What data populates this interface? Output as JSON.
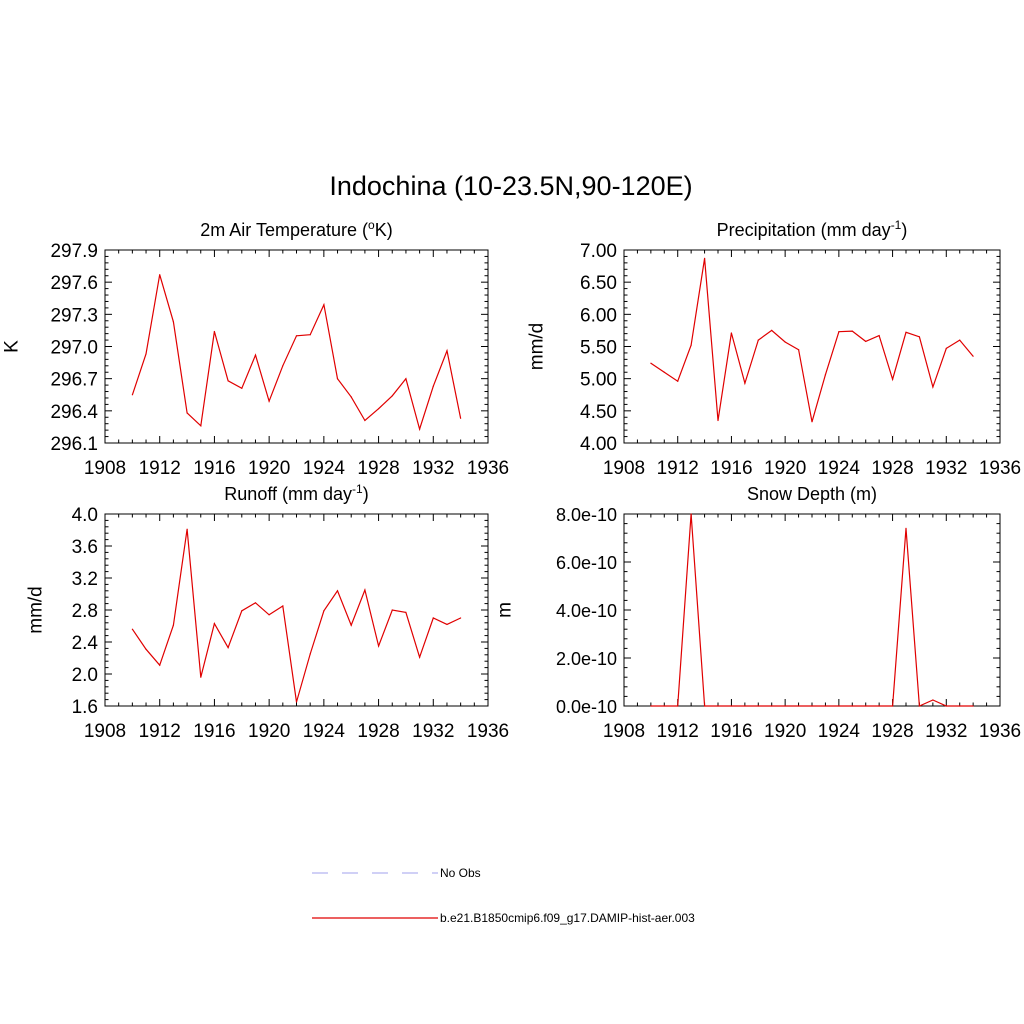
{
  "title": "Indochina (10-23.5N,90-120E)",
  "legend": {
    "placement": "bottom-center",
    "entries": [
      {
        "label": "No Obs",
        "style": "dashed",
        "color": "#b4b4f0"
      },
      {
        "label": "b.e21.B1850cmip6.f09_g17.DAMIP-hist-aer.003",
        "style": "solid",
        "color": "#e00000"
      }
    ]
  },
  "chart_data": [
    {
      "type": "line",
      "title": "2m Air Temperature (oK)",
      "title_parts": {
        "pre": "2m Air Temperature (",
        "sup": "o",
        "post": "K)"
      },
      "ylabel": "K",
      "xlim": [
        1908,
        1936
      ],
      "x_ticks": [
        1908,
        1912,
        1916,
        1920,
        1924,
        1928,
        1932,
        1936
      ],
      "ylim": [
        296.1,
        297.9
      ],
      "y_ticks": [
        296.1,
        296.4,
        296.7,
        297.0,
        297.3,
        297.6,
        297.9
      ],
      "y_tick_labels": [
        "296.1",
        "296.4",
        "296.7",
        "297.0",
        "297.3",
        "297.6",
        "297.9"
      ],
      "grid": false,
      "series": [
        {
          "color": "#e00000",
          "x": [
            1910,
            1911,
            1912,
            1913,
            1914,
            1915,
            1916,
            1917,
            1918,
            1919,
            1920,
            1921,
            1922,
            1923,
            1924,
            1925,
            1926,
            1927,
            1928,
            1929,
            1930,
            1931,
            1932,
            1933,
            1934
          ],
          "y": [
            296.55,
            296.93,
            297.67,
            297.23,
            296.38,
            296.26,
            297.14,
            296.68,
            296.61,
            296.92,
            296.49,
            296.82,
            297.1,
            297.11,
            297.39,
            296.7,
            296.53,
            296.31,
            296.42,
            296.54,
            296.7,
            296.23,
            296.63,
            296.96,
            296.33
          ]
        }
      ]
    },
    {
      "type": "line",
      "title": "Precipitation (mm day-1)",
      "title_parts": {
        "pre": "Precipitation (mm day",
        "sup": "-1",
        "post": ")"
      },
      "ylabel": "mm/d",
      "xlim": [
        1908,
        1936
      ],
      "x_ticks": [
        1908,
        1912,
        1916,
        1920,
        1924,
        1928,
        1932,
        1936
      ],
      "ylim": [
        4.0,
        7.0
      ],
      "y_ticks": [
        4.0,
        4.5,
        5.0,
        5.5,
        6.0,
        6.5,
        7.0
      ],
      "y_tick_labels": [
        "4.00",
        "4.50",
        "5.00",
        "5.50",
        "6.00",
        "6.50",
        "7.00"
      ],
      "grid": false,
      "series": [
        {
          "color": "#e00000",
          "x": [
            1910,
            1911,
            1912,
            1913,
            1914,
            1915,
            1916,
            1917,
            1918,
            1919,
            1920,
            1921,
            1922,
            1923,
            1924,
            1925,
            1926,
            1927,
            1928,
            1929,
            1930,
            1931,
            1932,
            1933,
            1934
          ],
          "y": [
            5.24,
            5.1,
            4.96,
            5.52,
            6.87,
            4.35,
            5.71,
            4.93,
            5.6,
            5.75,
            5.57,
            5.45,
            4.33,
            5.06,
            5.73,
            5.74,
            5.58,
            5.67,
            4.99,
            5.72,
            5.65,
            4.87,
            5.47,
            5.6,
            5.35
          ]
        }
      ]
    },
    {
      "type": "line",
      "title": "Runoff (mm day-1)",
      "title_parts": {
        "pre": "Runoff (mm day",
        "sup": "-1",
        "post": ")"
      },
      "ylabel": "mm/d",
      "xlim": [
        1908,
        1936
      ],
      "x_ticks": [
        1908,
        1912,
        1916,
        1920,
        1924,
        1928,
        1932,
        1936
      ],
      "ylim": [
        1.6,
        4.0
      ],
      "y_ticks": [
        1.6,
        2.0,
        2.4,
        2.8,
        3.2,
        3.6,
        4.0
      ],
      "y_tick_labels": [
        "1.6",
        "2.0",
        "2.4",
        "2.8",
        "3.2",
        "3.6",
        "4.0"
      ],
      "grid": false,
      "series": [
        {
          "color": "#e00000",
          "x": [
            1910,
            1911,
            1912,
            1913,
            1914,
            1915,
            1916,
            1917,
            1918,
            1919,
            1920,
            1921,
            1922,
            1923,
            1924,
            1925,
            1926,
            1927,
            1928,
            1929,
            1930,
            1931,
            1932,
            1933,
            1934
          ],
          "y": [
            2.56,
            2.31,
            2.11,
            2.61,
            3.81,
            1.96,
            2.63,
            2.33,
            2.79,
            2.89,
            2.74,
            2.85,
            1.65,
            2.25,
            2.79,
            3.04,
            2.61,
            3.05,
            2.35,
            2.8,
            2.77,
            2.21,
            2.7,
            2.62,
            2.7
          ]
        }
      ]
    },
    {
      "type": "line",
      "title": "Snow Depth (m)",
      "title_parts": {
        "pre": "Snow Depth (m)",
        "sup": "",
        "post": ""
      },
      "ylabel": "m",
      "xlim": [
        1908,
        1936
      ],
      "x_ticks": [
        1908,
        1912,
        1916,
        1920,
        1924,
        1928,
        1932,
        1936
      ],
      "ylim": [
        0,
        8e-10
      ],
      "y_ticks": [
        0,
        2e-10,
        4e-10,
        6e-10,
        8e-10
      ],
      "y_tick_labels": [
        "0.0e-10",
        "2.0e-10",
        "4.0e-10",
        "6.0e-10",
        "8.0e-10"
      ],
      "grid": false,
      "series": [
        {
          "color": "#e00000",
          "x": [
            1910,
            1911,
            1912,
            1913,
            1914,
            1915,
            1916,
            1917,
            1918,
            1919,
            1920,
            1921,
            1922,
            1923,
            1924,
            1925,
            1926,
            1927,
            1928,
            1929,
            1930,
            1931,
            1932,
            1933,
            1934
          ],
          "y": [
            0,
            0,
            0,
            8e-10,
            0,
            0,
            0,
            0,
            0,
            0,
            0,
            0,
            0,
            0,
            0,
            0,
            0,
            0,
            0,
            7.4e-10,
            0,
            2.5e-11,
            0,
            0,
            0
          ]
        }
      ]
    }
  ]
}
